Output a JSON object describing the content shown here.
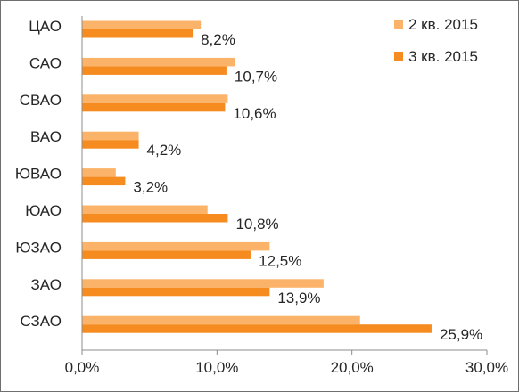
{
  "chart_data": {
    "type": "bar",
    "orientation": "horizontal",
    "categories": [
      "ЦАО",
      "САО",
      "СВАО",
      "ВАО",
      "ЮВАО",
      "ЮАО",
      "ЮЗАО",
      "ЗАО",
      "СЗАО"
    ],
    "series": [
      {
        "name": "2 кв. 2015",
        "color": "#fbb36a",
        "values": [
          8.8,
          11.3,
          10.8,
          4.2,
          2.5,
          9.3,
          13.9,
          17.9,
          20.6
        ]
      },
      {
        "name": "3 кв. 2015",
        "color": "#f68b1f",
        "values": [
          8.2,
          10.7,
          10.6,
          4.2,
          3.2,
          10.8,
          12.5,
          13.9,
          25.9
        ]
      }
    ],
    "data_labels": [
      "8,2%",
      "10,7%",
      "10,6%",
      "4,2%",
      "3,2%",
      "10,8%",
      "12,5%",
      "13,9%",
      "25,9%"
    ],
    "x_ticks": [
      "0,0%",
      "10,0%",
      "20,0%",
      "30,0%"
    ],
    "xlim": [
      0,
      30
    ],
    "grid": false,
    "legend_position": "top-right",
    "title": "",
    "xlabel": "",
    "ylabel": ""
  }
}
